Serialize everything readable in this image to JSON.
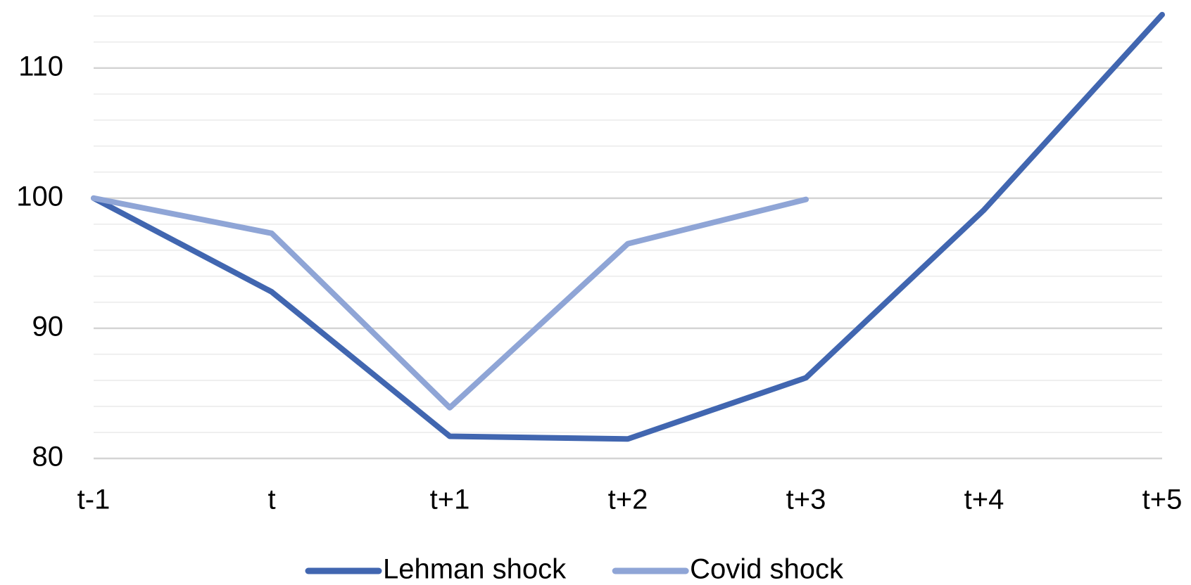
{
  "chart_data": {
    "type": "line",
    "categories": [
      "t-1",
      "t",
      "t+1",
      "t+2",
      "t+3",
      "t+4",
      "t+5"
    ],
    "series": [
      {
        "name": "Lehman shock",
        "color": "#4166b0",
        "values": [
          100,
          92.8,
          81.7,
          81.5,
          86.2,
          99.1,
          114.1
        ]
      },
      {
        "name": "Covid shock",
        "color": "#8fa5d6",
        "values": [
          100,
          97.3,
          83.9,
          96.5,
          99.9,
          null,
          null
        ]
      }
    ],
    "ylim": [
      80,
      114.2
    ],
    "yticks": [
      80,
      90,
      100,
      110
    ],
    "minor_yticks": [
      82,
      84,
      86,
      88,
      92,
      94,
      96,
      98,
      102,
      104,
      106,
      108,
      112,
      114
    ],
    "grid": true,
    "legend": "bottom"
  }
}
